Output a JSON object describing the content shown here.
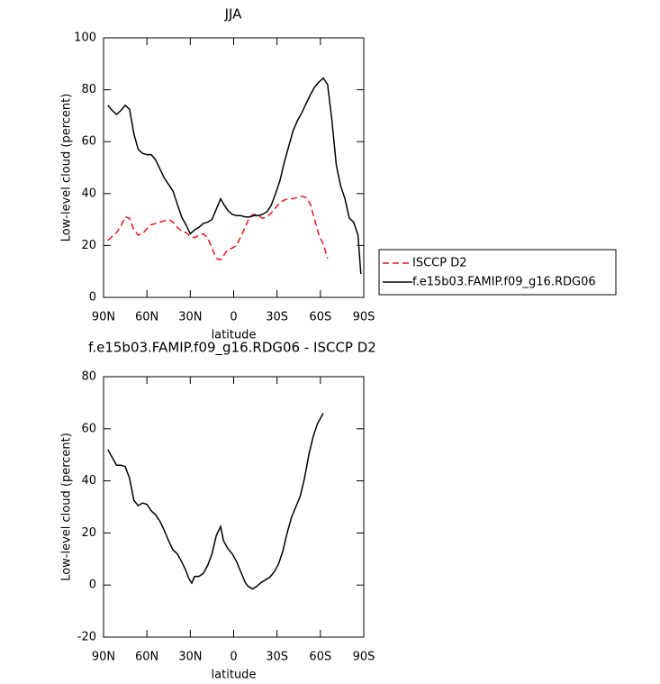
{
  "chart_data": [
    {
      "type": "line",
      "title": "JJA",
      "xlabel": "latitude",
      "ylabel": "Low-level cloud (percent)",
      "x": [
        87,
        84,
        81,
        78,
        75,
        72,
        69,
        66,
        63,
        60,
        57,
        54,
        51,
        48,
        45,
        42,
        39,
        36,
        33,
        30,
        27,
        24,
        21,
        18,
        15,
        12,
        9,
        7,
        4,
        1,
        -2,
        -5,
        -8,
        -11,
        -14,
        -17,
        -20,
        -23,
        -26,
        -29,
        -32,
        -35,
        -38,
        -41,
        -44,
        -47,
        -50,
        -53,
        -56,
        -59,
        -62,
        -65,
        -68,
        -71,
        -74,
        -77,
        -80,
        -83,
        -86,
        -88
      ],
      "series": [
        {
          "name": "ISCCP D2",
          "color": "#e8141c",
          "line_style": "dashed",
          "values": [
            22,
            23.5,
            25,
            27.5,
            31,
            30.5,
            26,
            24,
            24.5,
            26.5,
            28,
            28.5,
            29,
            29.5,
            30,
            29,
            27,
            25.5,
            25,
            23.5,
            23,
            24,
            24.5,
            23,
            19,
            15,
            14.5,
            16,
            18.5,
            19,
            20,
            23.5,
            27,
            31,
            32,
            31.5,
            30.5,
            31,
            32.5,
            34.5,
            36.5,
            37.5,
            38,
            38,
            38.5,
            39,
            38.5,
            36,
            30,
            24,
            20.5,
            15,
            null,
            null,
            null,
            null,
            null,
            null,
            null,
            null
          ]
        },
        {
          "name": "f.e15b03.FAMIP.f09_g16.RDG06",
          "color": "#000000",
          "line_style": "solid",
          "values": [
            74,
            72,
            70.5,
            72,
            74,
            72.5,
            63,
            57,
            55.5,
            55,
            55,
            53,
            49.5,
            46,
            43.5,
            41,
            36,
            31,
            28,
            24.5,
            26,
            27,
            28.5,
            29,
            30,
            34,
            38,
            36,
            33.5,
            32,
            31.5,
            31.5,
            31,
            31,
            31.5,
            31.5,
            32,
            33,
            35.5,
            40,
            45,
            52,
            58,
            64,
            68,
            71,
            74.5,
            78,
            81,
            83,
            84.5,
            82,
            68,
            51,
            43,
            38,
            30.5,
            29,
            24,
            9
          ]
        }
      ],
      "xlim": [
        90,
        -90
      ],
      "xticks": [
        {
          "value": 90,
          "label": "90N"
        },
        {
          "value": 60,
          "label": "60N"
        },
        {
          "value": 30,
          "label": "30N"
        },
        0,
        {
          "value": -30,
          "label": "30S"
        },
        {
          "value": -60,
          "label": "60S"
        },
        {
          "value": -90,
          "label": "90S"
        }
      ],
      "ylim": [
        0,
        100
      ],
      "yticks": [
        0,
        20,
        40,
        60,
        80,
        100
      ],
      "legend": "outside right"
    },
    {
      "type": "line",
      "title": "f.e15b03.FAMIP.f09_g16.RDG06 - ISCCP D2",
      "xlabel": "latitude",
      "ylabel": "Low-level cloud (percent)",
      "x": [
        87,
        84,
        81,
        78,
        75,
        72,
        69,
        66,
        63,
        60,
        57,
        54,
        51,
        48,
        45,
        42,
        39,
        36,
        33,
        31,
        29,
        27,
        24,
        21,
        18,
        15,
        12,
        9,
        7,
        4,
        1,
        -2,
        -5,
        -8,
        -10,
        -13,
        -16,
        -19,
        -22,
        -25,
        -28,
        -31,
        -34,
        -37,
        -40,
        -43,
        -46,
        -49,
        -52,
        -55,
        -58,
        -62
      ],
      "series": [
        {
          "color": "#000000",
          "line_style": "solid",
          "values": [
            52,
            49,
            46,
            46,
            45.5,
            41,
            32.5,
            30.5,
            31.5,
            31,
            28.5,
            27,
            24.5,
            21,
            17,
            13.5,
            12,
            9,
            5.5,
            2.5,
            0.7,
            3.3,
            3.3,
            4.5,
            7.5,
            12,
            19,
            22.5,
            17,
            14,
            12,
            9,
            5,
            1,
            -0.5,
            -1.5,
            -0.5,
            1,
            2,
            3,
            5,
            8,
            13,
            20,
            26,
            30,
            34,
            41,
            50,
            57,
            62,
            66
          ]
        }
      ],
      "xlim": [
        90,
        -90
      ],
      "xticks": [
        {
          "value": 90,
          "label": "90N"
        },
        {
          "value": 60,
          "label": "60N"
        },
        {
          "value": 30,
          "label": "30N"
        },
        0,
        {
          "value": -30,
          "label": "30S"
        },
        {
          "value": -60,
          "label": "60S"
        },
        {
          "value": -90,
          "label": "90S"
        }
      ],
      "ylim": [
        -20,
        80
      ],
      "yticks": [
        -20,
        0,
        20,
        40,
        60,
        80
      ]
    }
  ]
}
